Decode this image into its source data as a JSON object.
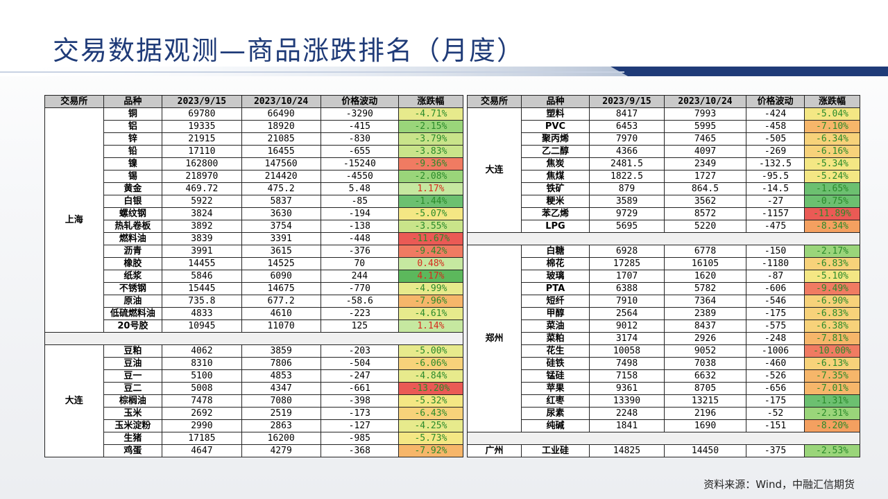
{
  "title": "交易数据观测—商品涨跌排名（月度）",
  "source": "资料来源：Wind，中融汇信期货",
  "headers": [
    "交易所",
    "品种",
    "2023/9/15",
    "2023/10/24",
    "价格波动",
    "涨跌幅"
  ],
  "left_groups": [
    {
      "exchange": "上海",
      "rows": [
        [
          "铜",
          "69780",
          "66490",
          "-3290",
          "-4.71%"
        ],
        [
          "铝",
          "19335",
          "18920",
          "-415",
          "-2.15%"
        ],
        [
          "锌",
          "21915",
          "21085",
          "-830",
          "-3.79%"
        ],
        [
          "铅",
          "17110",
          "16455",
          "-655",
          "-3.83%"
        ],
        [
          "镍",
          "162800",
          "147560",
          "-15240",
          "-9.36%"
        ],
        [
          "锡",
          "218970",
          "214420",
          "-4550",
          "-2.08%"
        ],
        [
          "黄金",
          "469.72",
          "475.2",
          "5.48",
          "1.17%"
        ],
        [
          "白银",
          "5922",
          "5837",
          "-85",
          "-1.44%"
        ],
        [
          "螺纹钢",
          "3824",
          "3630",
          "-194",
          "-5.07%"
        ],
        [
          "热轧卷板",
          "3892",
          "3754",
          "-138",
          "-3.55%"
        ],
        [
          "燃料油",
          "3839",
          "3391",
          "-448",
          "-11.67%"
        ],
        [
          "沥青",
          "3991",
          "3615",
          "-376",
          "-9.42%"
        ],
        [
          "橡胶",
          "14455",
          "14525",
          "70",
          "0.48%"
        ],
        [
          "纸浆",
          "5846",
          "6090",
          "244",
          "4.17%"
        ],
        [
          "不锈钢",
          "15445",
          "14675",
          "-770",
          "-4.99%"
        ],
        [
          "原油",
          "735.8",
          "677.2",
          "-58.6",
          "-7.96%"
        ],
        [
          "低硫燃料油",
          "4833",
          "4610",
          "-223",
          "-4.61%"
        ],
        [
          "20号胶",
          "10945",
          "11070",
          "125",
          "1.14%"
        ]
      ]
    },
    {
      "exchange": "大连",
      "rows": [
        [
          "豆粕",
          "4062",
          "3859",
          "-203",
          "-5.00%"
        ],
        [
          "豆油",
          "8310",
          "7806",
          "-504",
          "-6.06%"
        ],
        [
          "豆一",
          "5100",
          "4853",
          "-247",
          "-4.84%"
        ],
        [
          "豆二",
          "5008",
          "4347",
          "-661",
          "-13.20%"
        ],
        [
          "棕榈油",
          "7478",
          "7080",
          "-398",
          "-5.32%"
        ],
        [
          "玉米",
          "2692",
          "2519",
          "-173",
          "-6.43%"
        ],
        [
          "玉米淀粉",
          "2990",
          "2863",
          "-127",
          "-4.25%"
        ],
        [
          "生猪",
          "17185",
          "16200",
          "-985",
          "-5.73%"
        ],
        [
          "鸡蛋",
          "4647",
          "4279",
          "-368",
          "-7.92%"
        ]
      ]
    }
  ],
  "right_groups": [
    {
      "exchange": "大连",
      "rows": [
        [
          "塑料",
          "8417",
          "7993",
          "-424",
          "-5.04%"
        ],
        [
          "PVC",
          "6453",
          "5995",
          "-458",
          "-7.10%"
        ],
        [
          "聚丙烯",
          "7970",
          "7465",
          "-505",
          "-6.34%"
        ],
        [
          "乙二醇",
          "4366",
          "4097",
          "-269",
          "-6.16%"
        ],
        [
          "焦炭",
          "2481.5",
          "2349",
          "-132.5",
          "-5.34%"
        ],
        [
          "焦煤",
          "1822.5",
          "1727",
          "-95.5",
          "-5.24%"
        ],
        [
          "铁矿",
          "879",
          "864.5",
          "-14.5",
          "-1.65%"
        ],
        [
          "粳米",
          "3589",
          "3562",
          "-27",
          "-0.75%"
        ],
        [
          "苯乙烯",
          "9729",
          "8572",
          "-1157",
          "-11.89%"
        ],
        [
          "LPG",
          "5695",
          "5220",
          "-475",
          "-8.34%"
        ]
      ]
    },
    {
      "exchange": "郑州",
      "rows": [
        [
          "白糖",
          "6928",
          "6778",
          "-150",
          "-2.17%"
        ],
        [
          "棉花",
          "17285",
          "16105",
          "-1180",
          "-6.83%"
        ],
        [
          "玻璃",
          "1707",
          "1620",
          "-87",
          "-5.10%"
        ],
        [
          "PTA",
          "6388",
          "5782",
          "-606",
          "-9.49%"
        ],
        [
          "短纤",
          "7910",
          "7364",
          "-546",
          "-6.90%"
        ],
        [
          "甲醇",
          "2564",
          "2389",
          "-175",
          "-6.83%"
        ],
        [
          "菜油",
          "9012",
          "8437",
          "-575",
          "-6.38%"
        ],
        [
          "菜粕",
          "3174",
          "2926",
          "-248",
          "-7.81%"
        ],
        [
          "花生",
          "10058",
          "9052",
          "-1006",
          "-10.00%"
        ],
        [
          "硅铁",
          "7498",
          "7038",
          "-460",
          "-6.13%"
        ],
        [
          "锰硅",
          "7158",
          "6632",
          "-526",
          "-7.35%"
        ],
        [
          "苹果",
          "9361",
          "8705",
          "-656",
          "-7.01%"
        ],
        [
          "红枣",
          "13390",
          "13215",
          "-175",
          "-1.31%"
        ],
        [
          "尿素",
          "2248",
          "2196",
          "-52",
          "-2.31%"
        ],
        [
          "纯碱",
          "1841",
          "1690",
          "-151",
          "-8.20%"
        ]
      ]
    },
    {
      "exchange": "广州",
      "rows": [
        [
          "工业硅",
          "14825",
          "14450",
          "-375",
          "-2.53%"
        ]
      ]
    }
  ]
}
